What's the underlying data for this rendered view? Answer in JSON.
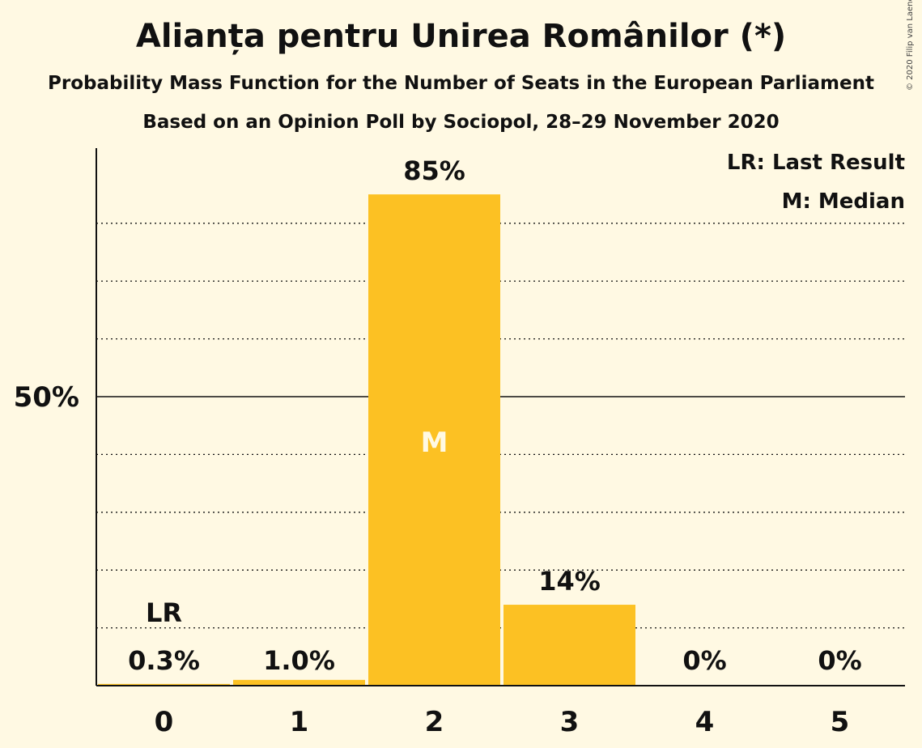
{
  "header": {
    "title": "Alianța pentru Unirea Românilor (*)",
    "subtitle": "Probability Mass Function for the Number of Seats in the European Parliament",
    "source": "Based on an Opinion Poll by Sociopol, 28–29 November 2020",
    "copyright": "© 2020 Filip van Laenen"
  },
  "legend": {
    "last_result": "LR: Last Result",
    "median": "M: Median"
  },
  "colors": {
    "bar": "#fcc123",
    "background": "#fff9e3",
    "axis": "#111111",
    "median_text": "#fff9e3"
  },
  "chart_data": {
    "type": "bar",
    "title": "Alianța pentru Unirea Românilor (*)",
    "xlabel": "",
    "ylabel": "",
    "categories": [
      "0",
      "1",
      "2",
      "3",
      "4",
      "5"
    ],
    "values": [
      0.3,
      1.0,
      85,
      14,
      0,
      0
    ],
    "data_labels": [
      "0.3%",
      "1.0%",
      "85%",
      "14%",
      "0%",
      "0%"
    ],
    "ylim": [
      0,
      93
    ],
    "y_ticks": [
      {
        "value": 50,
        "label": "50%"
      }
    ],
    "gridlines": [
      10,
      20,
      30,
      40,
      60,
      70,
      80
    ],
    "last_result": {
      "category": "0",
      "label": "LR"
    },
    "median": {
      "category": "2",
      "label": "M"
    }
  }
}
